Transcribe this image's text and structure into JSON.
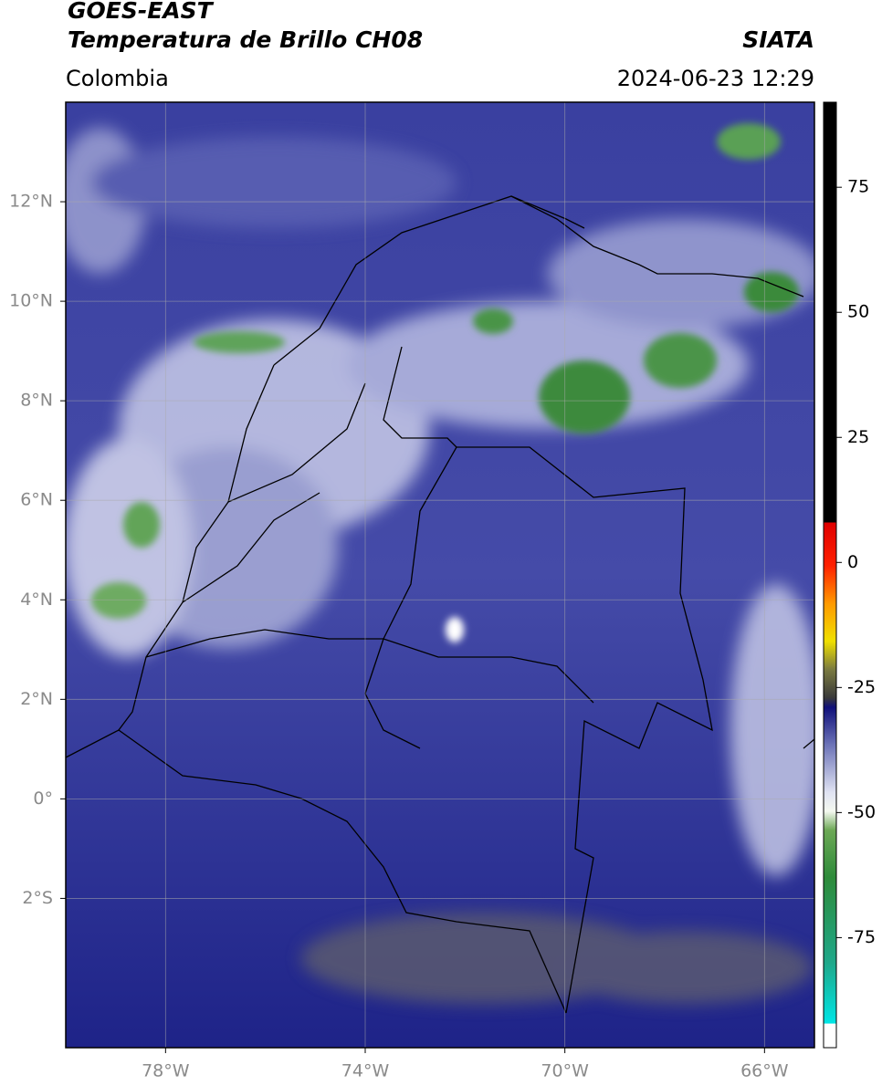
{
  "header": {
    "title_line1": "GOES-EAST",
    "title_line2": "Temperatura de Brillo CH08",
    "source": "SIATA",
    "region": "Colombia",
    "timestamp": "2024-06-23 12:29"
  },
  "map": {
    "xlim": [
      -80,
      -65
    ],
    "ylim": [
      -5,
      14
    ],
    "xticks": [
      {
        "value": -78,
        "label": "78°W"
      },
      {
        "value": -74,
        "label": "74°W"
      },
      {
        "value": -70,
        "label": "70°W"
      },
      {
        "value": -66,
        "label": "66°W"
      }
    ],
    "yticks": [
      {
        "value": 12,
        "label": "12°N"
      },
      {
        "value": 10,
        "label": "10°N"
      },
      {
        "value": 8,
        "label": "8°N"
      },
      {
        "value": 6,
        "label": "6°N"
      },
      {
        "value": 4,
        "label": "4°N"
      },
      {
        "value": 2,
        "label": "2°N"
      },
      {
        "value": 0,
        "label": "0°"
      },
      {
        "value": -2,
        "label": "2°S"
      }
    ],
    "grid": true
  },
  "colorbar": {
    "lim": [
      -97,
      92
    ],
    "ticks": [
      75,
      50,
      25,
      0,
      -25,
      -50,
      -75
    ]
  }
}
